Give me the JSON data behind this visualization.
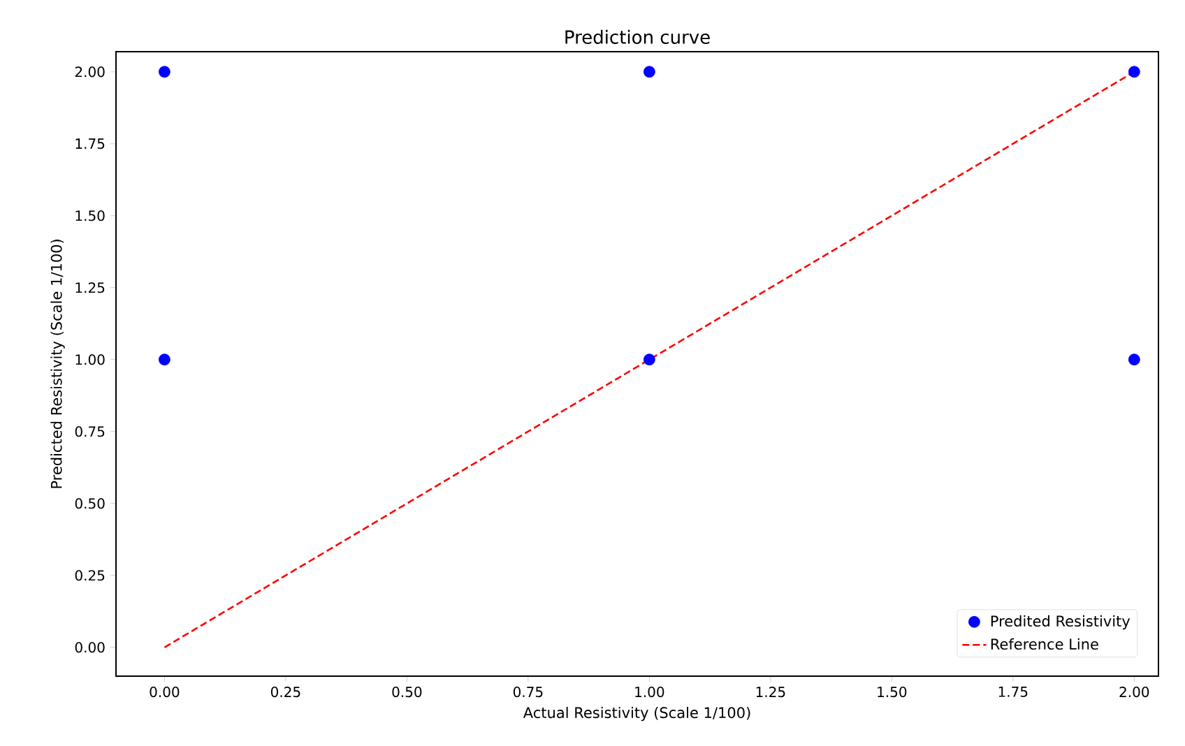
{
  "chart_data": {
    "type": "scatter",
    "title": "Prediction curve",
    "xlabel": "Actual Resistivity (Scale 1/100)",
    "ylabel": "Predicted Resistivity (Scale 1/100)",
    "series": [
      {
        "name": "Predited Resistivity",
        "color": "#0000ff",
        "marker": "circle",
        "x": [
          0,
          0,
          1,
          1,
          2,
          2
        ],
        "values": [
          2,
          1,
          2,
          1,
          2,
          1
        ]
      },
      {
        "name": "Reference Line",
        "type": "line",
        "color": "#ff0000",
        "line_style": "dashed",
        "marker": "none",
        "x": [
          0,
          2
        ],
        "values": [
          0,
          2
        ]
      }
    ],
    "xlim": [
      -0.1,
      2.05
    ],
    "ylim": [
      -0.1,
      2.07
    ],
    "xticks": [
      {
        "value": 0,
        "label": "0.00"
      },
      {
        "value": 0.25,
        "label": "0.25"
      },
      {
        "value": 0.5,
        "label": "0.50"
      },
      {
        "value": 0.75,
        "label": "0.75"
      },
      {
        "value": 1,
        "label": "1.00"
      },
      {
        "value": 1.25,
        "label": "1.25"
      },
      {
        "value": 1.5,
        "label": "1.50"
      },
      {
        "value": 1.75,
        "label": "1.75"
      },
      {
        "value": 2,
        "label": "2.00"
      }
    ],
    "yticks": [
      {
        "value": 0,
        "label": "0.00"
      },
      {
        "value": 0.25,
        "label": "0.25"
      },
      {
        "value": 0.5,
        "label": "0.50"
      },
      {
        "value": 0.75,
        "label": "0.75"
      },
      {
        "value": 1,
        "label": "1.00"
      },
      {
        "value": 1.25,
        "label": "1.25"
      },
      {
        "value": 1.5,
        "label": "1.50"
      },
      {
        "value": 1.75,
        "label": "1.75"
      },
      {
        "value": 2,
        "label": "2.00"
      }
    ],
    "grid": false,
    "legend": "bottom right"
  }
}
